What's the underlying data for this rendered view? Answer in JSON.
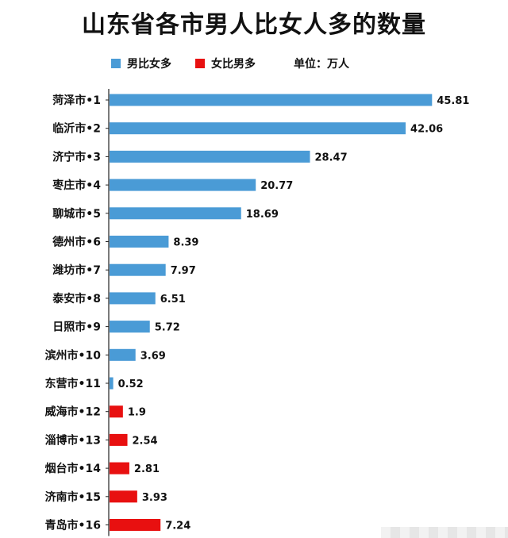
{
  "chart_data": {
    "type": "bar",
    "orientation": "horizontal",
    "title": "山东省各市男人比女人多的数量",
    "unit_label": "单位：万人",
    "legend": [
      {
        "label": "男比女多",
        "color": "#4a9bd6"
      },
      {
        "label": "女比男多",
        "color": "#e81010"
      }
    ],
    "categories": [
      "菏泽市•1",
      "临沂市•2",
      "济宁市•3",
      "枣庄市•4",
      "聊城市•5",
      "德州市•6",
      "潍坊市•7",
      "泰安市•8",
      "日照市•9",
      "滨州市•10",
      "东营市•11",
      "威海市•12",
      "淄博市•13",
      "烟台市•14",
      "济南市•15",
      "青岛市•16"
    ],
    "values": [
      45.81,
      42.06,
      28.47,
      20.77,
      18.69,
      8.39,
      7.97,
      6.51,
      5.72,
      3.69,
      0.52,
      1.9,
      2.54,
      2.81,
      3.93,
      7.24
    ],
    "value_labels": [
      "45.81",
      "42.06",
      "28.47",
      "20.77",
      "18.69",
      "8.39",
      "7.97",
      "6.51",
      "5.72",
      "3.69",
      "0.52",
      "1.9",
      "2.54",
      "2.81",
      "3.93",
      "7.24"
    ],
    "groups": [
      "男比女多",
      "男比女多",
      "男比女多",
      "男比女多",
      "男比女多",
      "男比女多",
      "男比女多",
      "男比女多",
      "男比女多",
      "男比女多",
      "男比女多",
      "女比男多",
      "女比男多",
      "女比男多",
      "女比男多",
      "女比男多"
    ],
    "xlim": [
      0,
      46
    ],
    "grid": false,
    "legend_position": "top"
  }
}
